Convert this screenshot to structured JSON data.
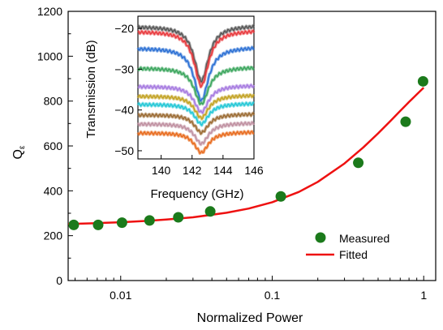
{
  "chart_data": [
    {
      "type": "scatter",
      "xlabel": "Normalized Power",
      "ylabel": "Q",
      "ylabel_sub": "ε",
      "xscale": "log",
      "xlim": [
        0.0045,
        1.2
      ],
      "ylim": [
        0,
        1200
      ],
      "xticks": [
        0.01,
        0.1,
        1
      ],
      "xtick_labels": [
        "0.01",
        "0.1",
        "1"
      ],
      "yticks": [
        0,
        200,
        400,
        600,
        800,
        1000,
        1200
      ],
      "legend": {
        "position": "bottom-right",
        "entries": [
          "Measured",
          "Fitted"
        ]
      },
      "series": [
        {
          "name": "Measured",
          "kind": "marker",
          "color": "#1b7a1b",
          "x": [
            0.0049,
            0.0071,
            0.0102,
            0.0155,
            0.024,
            0.039,
            0.114,
            0.37,
            0.76,
            0.99
          ],
          "y": [
            248,
            248,
            258,
            268,
            282,
            308,
            375,
            525,
            708,
            888
          ]
        },
        {
          "name": "Fitted",
          "kind": "line",
          "color": "#ee1111",
          "x": [
            0.0045,
            0.007,
            0.01,
            0.015,
            0.02,
            0.03,
            0.05,
            0.07,
            0.1,
            0.15,
            0.2,
            0.3,
            0.4,
            0.5,
            0.6,
            0.7,
            0.8,
            0.9,
            1.0
          ],
          "y": [
            252,
            256,
            260,
            266,
            272,
            282,
            302,
            321,
            349,
            395,
            440,
            522,
            594,
            656,
            710,
            756,
            796,
            830,
            860
          ]
        }
      ]
    },
    {
      "type": "line",
      "inset": true,
      "xlabel": "Frequency (GHz)",
      "ylabel": "Transmission (dB)",
      "xlim": [
        138.5,
        146
      ],
      "ylim": [
        -52,
        -17
      ],
      "xticks": [
        140,
        142,
        144,
        146
      ],
      "yticks": [
        -20,
        -30,
        -40,
        -50
      ],
      "series": [
        {
          "color": "#555555",
          "values": {
            "baseline": -19.5,
            "center": 142.6,
            "depth": 13.5
          }
        },
        {
          "color": "#e8383c",
          "values": {
            "baseline": -20.7,
            "center": 142.6,
            "depth": 13.5
          }
        },
        {
          "color": "#2a6fd4",
          "values": {
            "baseline": -24.8,
            "center": 142.6,
            "depth": 13.0
          }
        },
        {
          "color": "#3aa55c",
          "values": {
            "baseline": -29.7,
            "center": 142.6,
            "depth": 9.0
          }
        },
        {
          "color": "#a67ae0",
          "values": {
            "baseline": -34.2,
            "center": 142.6,
            "depth": 6.5
          }
        },
        {
          "color": "#c2a222",
          "values": {
            "baseline": -36.6,
            "center": 142.6,
            "depth": 5.5
          }
        },
        {
          "color": "#22c7d6",
          "values": {
            "baseline": -38.6,
            "center": 142.6,
            "depth": 5.0
          }
        },
        {
          "color": "#9a6a32",
          "values": {
            "baseline": -41.2,
            "center": 142.6,
            "depth": 4.5
          }
        },
        {
          "color": "#bf8fa0",
          "values": {
            "baseline": -43.4,
            "center": 142.6,
            "depth": 5.0
          }
        },
        {
          "color": "#e86a1c",
          "values": {
            "baseline": -45.6,
            "center": 142.6,
            "depth": 5.0
          }
        }
      ]
    }
  ]
}
